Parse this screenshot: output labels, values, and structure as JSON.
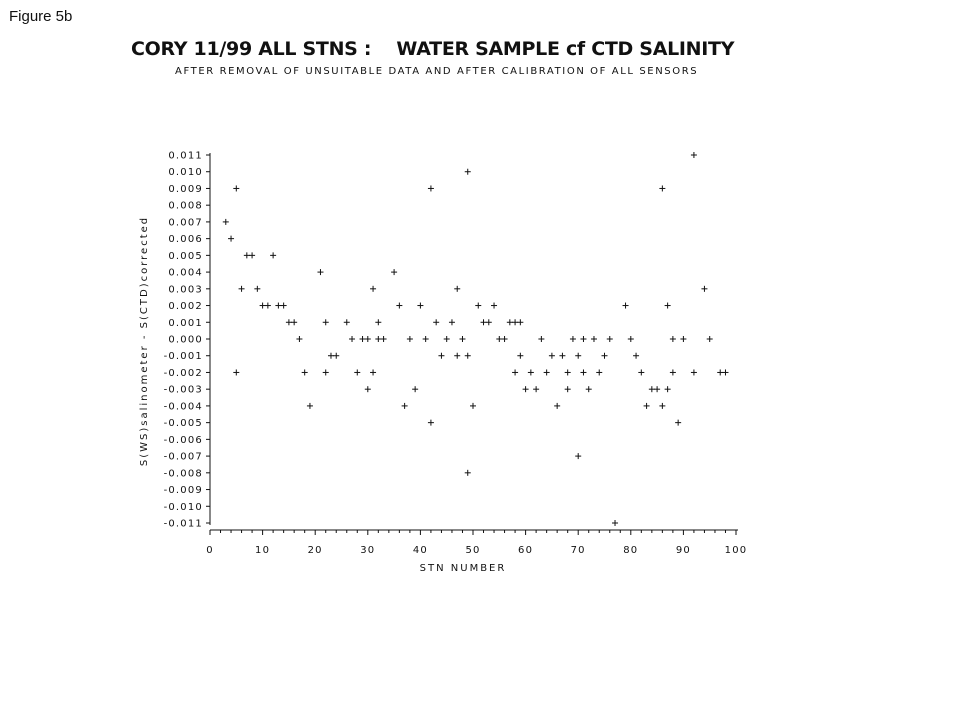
{
  "figure_label": "Figure 5b",
  "chart_data": {
    "type": "scatter",
    "title": "CORY 11/99 ALL STNS :    WATER SAMPLE cf CTD SALINITY",
    "subtitle": "AFTER REMOVAL OF UNSUITABLE DATA AND AFTER CALIBRATION OF ALL SENSORS",
    "xlabel": "STN NUMBER",
    "ylabel": "S(WS)salinometer - S(CTD)corrected",
    "xlim": [
      0,
      100
    ],
    "ylim": [
      -0.011,
      0.011
    ],
    "grid": false,
    "marker": "+",
    "x_ticks": [
      "0",
      "10",
      "20",
      "30",
      "40",
      "50",
      "60",
      "70",
      "80",
      "90",
      "100"
    ],
    "y_ticks": [
      "0.011",
      "0.010",
      "0.009",
      "0.008",
      "0.007",
      "0.006",
      "0.005",
      "0.004",
      "0.003",
      "0.002",
      "0.001",
      "0.000",
      "-0.001",
      "-0.002",
      "-0.003",
      "-0.004",
      "-0.005",
      "-0.006",
      "-0.007",
      "-0.008",
      "-0.009",
      "-0.010",
      "-0.011"
    ],
    "points": [
      [
        3,
        0.007
      ],
      [
        4,
        0.006
      ],
      [
        5,
        -0.002
      ],
      [
        5,
        0.009
      ],
      [
        6,
        0.003
      ],
      [
        7,
        0.005
      ],
      [
        8,
        0.005
      ],
      [
        9,
        0.003
      ],
      [
        10,
        0.002
      ],
      [
        11,
        0.002
      ],
      [
        12,
        0.005
      ],
      [
        13,
        0.002
      ],
      [
        14,
        0.002
      ],
      [
        15,
        0.001
      ],
      [
        16,
        0.001
      ],
      [
        17,
        0
      ],
      [
        18,
        -0.002
      ],
      [
        19,
        -0.004
      ],
      [
        21,
        0.004
      ],
      [
        22,
        0.001
      ],
      [
        22,
        -0.002
      ],
      [
        23,
        -0.001
      ],
      [
        24,
        -0.001
      ],
      [
        26,
        0.001
      ],
      [
        27,
        0
      ],
      [
        28,
        -0.002
      ],
      [
        29,
        0
      ],
      [
        30,
        0
      ],
      [
        30,
        -0.003
      ],
      [
        31,
        0.003
      ],
      [
        31,
        -0.002
      ],
      [
        32,
        0
      ],
      [
        32,
        0.001
      ],
      [
        33,
        0
      ],
      [
        35,
        0.004
      ],
      [
        36,
        0.002
      ],
      [
        37,
        -0.004
      ],
      [
        38,
        0
      ],
      [
        39,
        -0.003
      ],
      [
        40,
        0.002
      ],
      [
        41,
        0
      ],
      [
        42,
        0.009
      ],
      [
        42,
        -0.005
      ],
      [
        43,
        0.001
      ],
      [
        44,
        -0.001
      ],
      [
        45,
        0
      ],
      [
        46,
        0.001
      ],
      [
        47,
        0.003
      ],
      [
        47,
        -0.001
      ],
      [
        48,
        0
      ],
      [
        49,
        0.01
      ],
      [
        49,
        -0.008
      ],
      [
        49,
        -0.001
      ],
      [
        50,
        -0.004
      ],
      [
        51,
        0.002
      ],
      [
        52,
        0.001
      ],
      [
        53,
        0.001
      ],
      [
        54,
        0.002
      ],
      [
        55,
        0
      ],
      [
        56,
        0
      ],
      [
        57,
        0.001
      ],
      [
        58,
        0.001
      ],
      [
        58,
        -0.002
      ],
      [
        59,
        0.001
      ],
      [
        59,
        -0.001
      ],
      [
        60,
        -0.003
      ],
      [
        61,
        -0.002
      ],
      [
        62,
        -0.003
      ],
      [
        63,
        0
      ],
      [
        64,
        -0.002
      ],
      [
        65,
        -0.001
      ],
      [
        66,
        -0.004
      ],
      [
        67,
        -0.001
      ],
      [
        68,
        -0.002
      ],
      [
        68,
        -0.003
      ],
      [
        69,
        0
      ],
      [
        70,
        -0.001
      ],
      [
        70,
        -0.007
      ],
      [
        71,
        0
      ],
      [
        71,
        -0.002
      ],
      [
        72,
        -0.003
      ],
      [
        73,
        0
      ],
      [
        74,
        -0.002
      ],
      [
        75,
        -0.001
      ],
      [
        76,
        0
      ],
      [
        77,
        -0.011
      ],
      [
        79,
        0.002
      ],
      [
        80,
        0
      ],
      [
        81,
        -0.001
      ],
      [
        82,
        -0.002
      ],
      [
        83,
        -0.004
      ],
      [
        84,
        -0.003
      ],
      [
        85,
        -0.003
      ],
      [
        86,
        -0.004
      ],
      [
        86,
        0.009
      ],
      [
        87,
        -0.003
      ],
      [
        87,
        0.002
      ],
      [
        88,
        0
      ],
      [
        88,
        -0.002
      ],
      [
        89,
        -0.005
      ],
      [
        90,
        0
      ],
      [
        92,
        0.011
      ],
      [
        92,
        -0.002
      ],
      [
        94,
        0.003
      ],
      [
        95,
        0
      ],
      [
        97,
        -0.002
      ],
      [
        98,
        -0.002
      ]
    ]
  }
}
